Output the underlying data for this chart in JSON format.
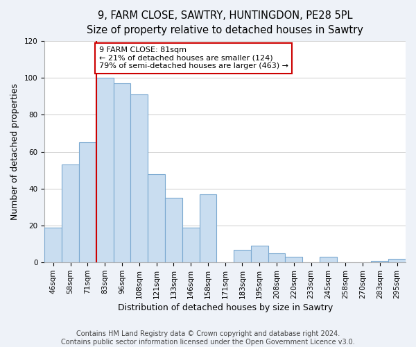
{
  "title": "9, FARM CLOSE, SAWTRY, HUNTINGDON, PE28 5PL",
  "subtitle": "Size of property relative to detached houses in Sawtry",
  "xlabel": "Distribution of detached houses by size in Sawtry",
  "ylabel": "Number of detached properties",
  "categories": [
    "46sqm",
    "58sqm",
    "71sqm",
    "83sqm",
    "96sqm",
    "108sqm",
    "121sqm",
    "133sqm",
    "146sqm",
    "158sqm",
    "171sqm",
    "183sqm",
    "195sqm",
    "208sqm",
    "220sqm",
    "233sqm",
    "245sqm",
    "258sqm",
    "270sqm",
    "283sqm",
    "295sqm"
  ],
  "values": [
    19,
    53,
    65,
    100,
    97,
    91,
    48,
    35,
    19,
    37,
    0,
    7,
    9,
    5,
    3,
    0,
    3,
    0,
    0,
    1,
    2
  ],
  "bar_color": "#c9ddf0",
  "bar_edge_color": "#7aa8d0",
  "redline_index": 3,
  "annotation_line1": "9 FARM CLOSE: 81sqm",
  "annotation_line2": "← 21% of detached houses are smaller (124)",
  "annotation_line3": "79% of semi-detached houses are larger (463) →",
  "box_facecolor": "#ffffff",
  "box_edgecolor": "#cc0000",
  "vline_color": "#cc0000",
  "ylim": [
    0,
    120
  ],
  "yticks": [
    0,
    20,
    40,
    60,
    80,
    100,
    120
  ],
  "footer1": "Contains HM Land Registry data © Crown copyright and database right 2024.",
  "footer2": "Contains public sector information licensed under the Open Government Licence v3.0.",
  "plot_bg_color": "#ffffff",
  "fig_bg_color": "#eef2f8",
  "title_fontsize": 10.5,
  "axis_label_fontsize": 9,
  "tick_fontsize": 7.5,
  "annotation_fontsize": 8,
  "footer_fontsize": 7
}
